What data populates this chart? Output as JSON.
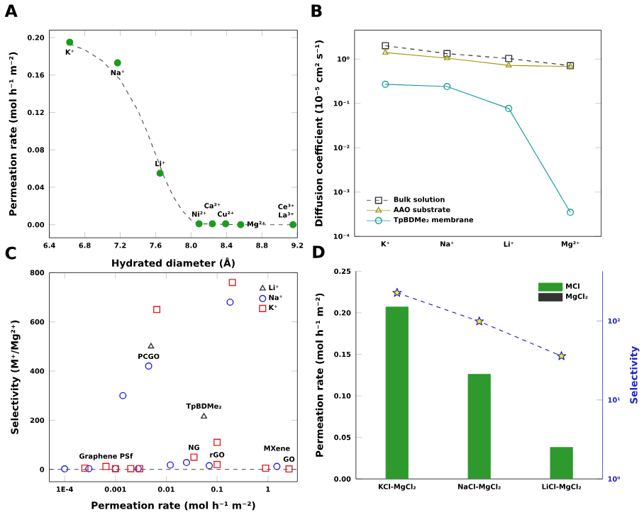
{
  "chart_data": [
    {
      "type": "scatter",
      "title": "A",
      "xlabel": "Hydrated diameter (Å)",
      "ylabel": "Permeation rate (mol h⁻¹ m⁻²)",
      "xlim": [
        6.4,
        9.2
      ],
      "ylim": [
        -0.014,
        0.208
      ],
      "xticks": [
        6.4,
        6.8,
        7.2,
        7.6,
        {
          "value": 8,
          "label": "8.0"
        },
        8.4,
        8.8,
        9.2
      ],
      "yticks": [
        {
          "value": 0,
          "label": "0.00"
        },
        {
          "value": 0.04,
          "label": "0.04"
        },
        {
          "value": 0.08,
          "label": "0.08"
        },
        {
          "value": 0.12,
          "label": "0.12"
        },
        {
          "value": 0.16,
          "label": "0.16"
        },
        {
          "value": 0.2,
          "label": "0.20"
        }
      ],
      "series": [
        {
          "type": "line",
          "color": "#555555",
          "marker": "none",
          "line_style": "dashed",
          "x": [
            6.63,
            6.8,
            7.0,
            7.2,
            7.4,
            7.5,
            7.6,
            7.7,
            7.8,
            7.9,
            8.0,
            8.09,
            8.56,
            9.15
          ],
          "values": [
            0.193,
            0.187,
            0.175,
            0.155,
            0.122,
            0.1,
            0.075,
            0.05,
            0.03,
            0.015,
            0.005,
            0.001,
            0.0,
            0.0
          ]
        },
        {
          "color": "#1e9a1e",
          "marker": "circle",
          "x": [
            6.63,
            7.17,
            7.65,
            8.09,
            8.24,
            8.39,
            8.56,
            9.15
          ],
          "values": [
            0.195,
            0.173,
            0.055,
            0.001,
            0.001,
            0.001,
            0.0,
            0.0
          ]
        }
      ],
      "annotations": [
        {
          "text": "K⁺",
          "x": 6.63,
          "y": 0.195
        },
        {
          "text": "Na⁺",
          "x": 7.17,
          "y": 0.173
        },
        {
          "text": "Li⁺",
          "x": 7.65,
          "y": 0.055
        },
        {
          "text": "Ni²⁺",
          "x": 8.09,
          "y": 0.001
        },
        {
          "text": "Ca²⁺",
          "x": 8.24,
          "y": 0.001
        },
        {
          "text": "Cu²⁺",
          "x": 8.39,
          "y": 0.001
        },
        {
          "text": "Mg²⁺",
          "x": 8.56,
          "y": 0.0
        },
        {
          "text": "La³⁺",
          "x": 9.15,
          "y": 0.0
        },
        {
          "text": "Ce³⁺",
          "x": 9.15,
          "y": 0.0
        }
      ]
    },
    {
      "type": "line",
      "title": "B",
      "ylabel": "Diffusion coefficient (10⁻⁵ cm² s⁻¹)",
      "log": "y",
      "legend": "bottom left",
      "categories": [
        "K⁺",
        "Na⁺",
        "Li⁺",
        "Mg²⁺"
      ],
      "ylim": [
        0.0001,
        4.5
      ],
      "yticks": [
        {
          "value": 0.0001,
          "label": "10⁻⁴"
        },
        {
          "value": 0.001,
          "label": "10⁻³"
        },
        {
          "value": 0.01,
          "label": "10⁻²"
        },
        {
          "value": 0.1,
          "label": "10⁻¹"
        },
        {
          "value": 1,
          "label": "10⁰"
        }
      ],
      "series": [
        {
          "name": "Bulk solution",
          "color": "#333333",
          "marker": "square",
          "line_style": "dashed",
          "values": [
            2.0,
            1.33,
            1.03,
            0.71
          ]
        },
        {
          "name": "AAO substrate",
          "color": "#a09a10",
          "marker": "triangle",
          "line_style": "solid",
          "values": [
            1.4,
            1.05,
            0.72,
            0.68
          ]
        },
        {
          "name": "TpBDMe₂ membrane",
          "color": "#1a9e9e",
          "marker": "circle",
          "line_style": "solid",
          "values": [
            0.27,
            0.24,
            0.077,
            0.00035
          ]
        }
      ]
    },
    {
      "type": "scatter",
      "title": "C",
      "xlabel": "Permeation rate (mol h⁻¹ m⁻²)",
      "ylabel": "Selectivity (M⁺/Mg²⁺)",
      "log": "x",
      "legend": "top right",
      "xlim": [
        5e-05,
        3.8
      ],
      "ylim": [
        -50,
        800
      ],
      "xticks": [
        {
          "value": 0.0001,
          "label": "1E-4"
        },
        0.001,
        0.01,
        0.1,
        1
      ],
      "yticks": [
        0,
        200,
        400,
        600,
        800
      ],
      "series": [
        {
          "name": "Li⁺",
          "color": "#333333",
          "marker": "triangle",
          "x": [
            0.005,
            0.055
          ],
          "values": [
            500,
            215
          ]
        },
        {
          "name": "Na⁺",
          "color": "#1f1fe0",
          "marker": "circle",
          "x": [
            0.0001,
            0.0003,
            0.001,
            0.0028,
            0.0045,
            0.0014,
            0.18,
            0.012,
            0.025,
            0.07,
            1.5
          ],
          "values": [
            2,
            3,
            3,
            3,
            420,
            300,
            680,
            18,
            28,
            15,
            12
          ]
        },
        {
          "name": "K⁺",
          "color": "#e02020",
          "marker": "square",
          "x": [
            0.00025,
            0.00065,
            0.001,
            0.002,
            0.003,
            0.0065,
            0.2,
            0.035,
            0.1,
            0.1,
            0.9,
            2.6
          ],
          "values": [
            5,
            12,
            3,
            3,
            3,
            650,
            760,
            50,
            110,
            20,
            5,
            2
          ]
        }
      ],
      "ref_lines": [
        {
          "axis": "y",
          "value": 0,
          "line_style": "dashed",
          "color": "#000000"
        }
      ],
      "annotations": [
        {
          "text": "PCGO",
          "x": 0.0045,
          "y": 420
        },
        {
          "text": "TpBDMe₂",
          "x": 0.055,
          "y": 215
        },
        {
          "text": "Graphene PSf",
          "x": 0.00065,
          "y": 12
        },
        {
          "text": "NG",
          "x": 0.035,
          "y": 50
        },
        {
          "text": "rGO",
          "x": 0.1,
          "y": 20
        },
        {
          "text": "GO",
          "x": 2.6,
          "y": 2
        },
        {
          "text": "MXene",
          "x": 1.5,
          "y": 12
        }
      ]
    },
    {
      "type": "bar",
      "title": "D",
      "ylabel": "Permeation rate (mol h⁻¹ m⁻²)",
      "y2label": "Selectivity",
      "log": "y2",
      "legend": "top right",
      "categories": [
        "KCl-MgCl₂",
        "NaCl-MgCl₂",
        "LiCl-MgCl₂"
      ],
      "ylim": [
        0,
        0.25
      ],
      "yticks": [
        {
          "value": 0,
          "label": "0.00"
        },
        {
          "value": 0.05,
          "label": "0.05"
        },
        {
          "value": 0.1,
          "label": "0.10"
        },
        {
          "value": 0.15,
          "label": "0.15"
        },
        {
          "value": 0.2,
          "label": "0.20"
        },
        {
          "value": 0.25,
          "label": "0.25"
        }
      ],
      "y2lim": [
        1,
        427
      ],
      "y2ticks": [
        {
          "value": 1,
          "label": "10⁰"
        },
        {
          "value": 10,
          "label": "10¹"
        },
        {
          "value": 100,
          "label": "10²"
        }
      ],
      "series": [
        {
          "name": "MCl",
          "color": "#2e9a2e",
          "values": [
            0.207,
            0.126,
            0.038
          ]
        },
        {
          "name": "MgCl₂",
          "color": "#333333",
          "values": [
            null,
            null,
            null
          ]
        },
        {
          "type": "line",
          "axis": "y2",
          "color": "#2222cc",
          "marker": "star",
          "line_style": "dashed",
          "values": [
            228,
            99,
            36
          ]
        }
      ]
    }
  ]
}
